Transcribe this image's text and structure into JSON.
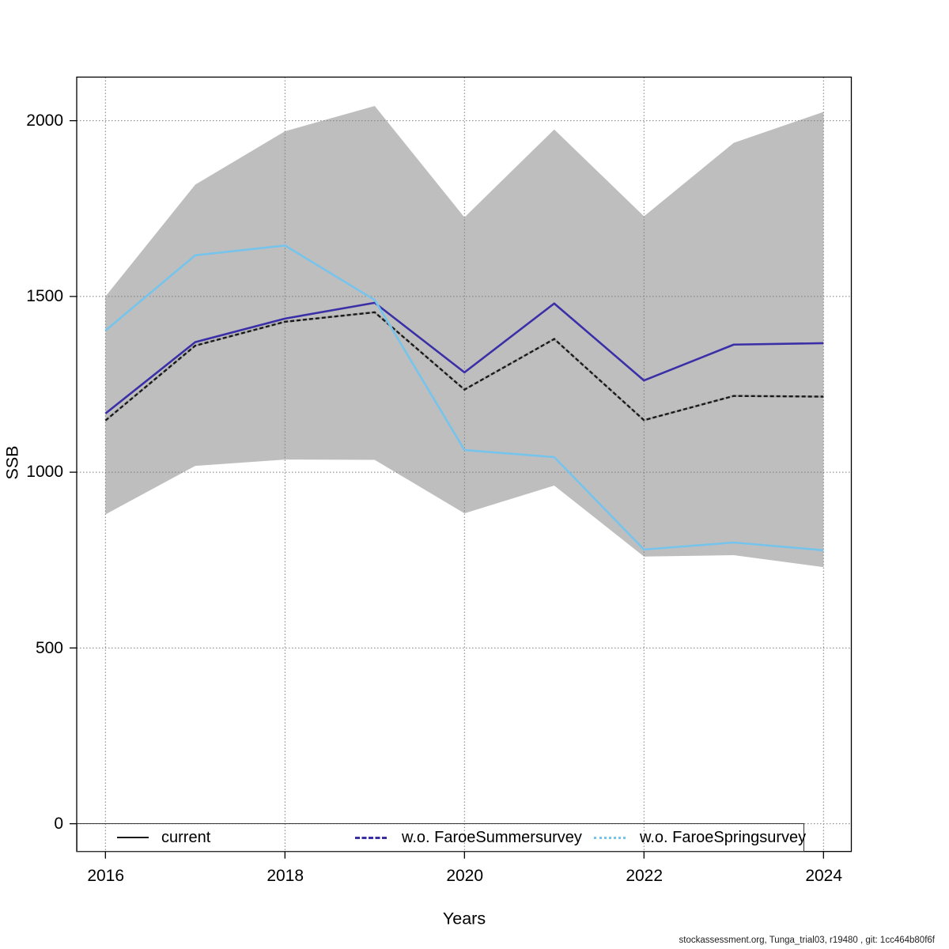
{
  "chart_data": {
    "type": "line",
    "title": "",
    "xlabel": "Years",
    "ylabel": "SSB",
    "x": [
      2016,
      2017,
      2018,
      2019,
      2020,
      2021,
      2022,
      2023,
      2024
    ],
    "x_ticks": [
      2016,
      2018,
      2020,
      2022,
      2024
    ],
    "x_tick_labels": [
      "2016",
      "2018",
      "2020",
      "2022",
      "2024"
    ],
    "y_ticks": [
      0,
      500,
      1000,
      1500,
      2000
    ],
    "y_tick_labels": [
      "0",
      "500",
      "1000",
      "1500",
      "2000"
    ],
    "xlim": [
      2015.68,
      2024.31
    ],
    "ylim": [
      -79,
      2124
    ],
    "grid": true,
    "band": {
      "name": "confidence-region",
      "color": "#bebebe",
      "upper": [
        1500,
        1818,
        1970,
        2042,
        1725,
        1975,
        1728,
        1937,
        2025
      ],
      "lower": [
        880,
        1018,
        1036,
        1035,
        883,
        962,
        760,
        764,
        730
      ]
    },
    "series": [
      {
        "name": "current",
        "color": "#1a1a1a",
        "line_style": "dashed",
        "values": [
          1147,
          1360,
          1428,
          1455,
          1235,
          1379,
          1148,
          1217,
          1215
        ]
      },
      {
        "name": "w.o. FaroeSummersurvey",
        "color": "#3b2fa8",
        "line_style": "solid",
        "values": [
          1167,
          1370,
          1437,
          1482,
          1284,
          1480,
          1261,
          1363,
          1367
        ]
      },
      {
        "name": "w.o. FaroeSpringsurvey",
        "color": "#76c4ec",
        "line_style": "solid",
        "values": [
          1403,
          1617,
          1645,
          1490,
          1063,
          1043,
          780,
          800,
          778
        ]
      }
    ],
    "legend": [
      {
        "label": "current",
        "color": "#1a1a1a",
        "sample_style": "solid"
      },
      {
        "label": "w.o. FaroeSummersurvey",
        "color": "#3b2fa8",
        "sample_style": "dashed"
      },
      {
        "label": "w.o. FaroeSpringsurvey",
        "color": "#76c4ec",
        "sample_style": "dotted"
      }
    ],
    "legend_position": "bottom"
  },
  "footer": {
    "text": "stockassessment.org, Tunga_trial03, r19480 , git: 1cc464b80f6f"
  }
}
